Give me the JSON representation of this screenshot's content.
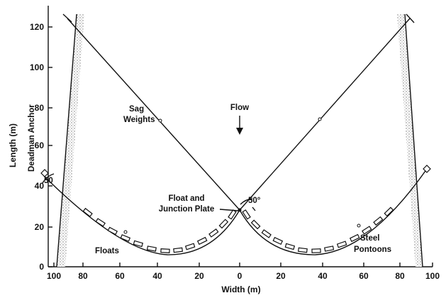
{
  "axes": {
    "x_label": "Width (m)",
    "y_label": "Length (m)",
    "x_ticks": [
      "100",
      "80",
      "60",
      "40",
      "20",
      "0",
      "20",
      "40",
      "60",
      "80",
      "100"
    ],
    "y_ticks": [
      "0",
      "20",
      "40",
      "60",
      "80",
      "100",
      "120"
    ]
  },
  "annotations": {
    "deadman_anchor": "Deadman Anchor",
    "sag_line1": "Sag",
    "sag_line2": "Weights",
    "flow": "Flow",
    "float_line1": "Float and",
    "float_line2": "Junction Plate",
    "angle_left": "50",
    "angle_center": "50°",
    "floats": "Floats",
    "steel_line1": "Steel",
    "steel_line2": "Pontoons"
  },
  "colors": {
    "ink": "#111111",
    "bank_stipple": "#8a8a8a",
    "background": "#ffffff"
  }
}
